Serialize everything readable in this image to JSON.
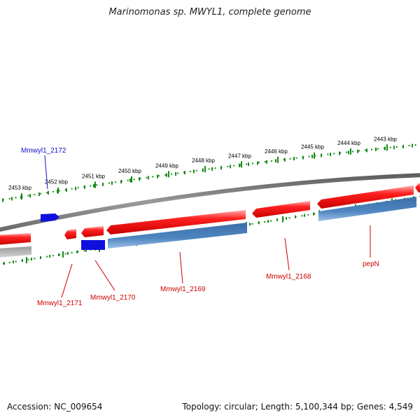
{
  "title": "Marinomonas sp. MWYL1, complete genome",
  "footer": {
    "accession_label": "Accession:",
    "accession": "NC_009654",
    "topology_label": "Topology:",
    "topology": "circular",
    "length_label": "Length:",
    "length": "5,100,344 bp",
    "genes_label": "Genes:",
    "genes": "4,549"
  },
  "colors": {
    "forward_gene": "#ee0000",
    "forward_orf": "#1010dd",
    "reverse_cds": "#4f86c0",
    "reverse_orf": "#1010dd",
    "ticks": "#1a8a1a",
    "backbone": "#808080",
    "forward_label": "#cc0000",
    "orf_label": "#1010cc"
  },
  "scale": {
    "unit": "kbp",
    "ticks": [
      "2453 kbp",
      "2452 kbp",
      "2451 kbp",
      "2450 kbp",
      "2449 kbp",
      "2448 kbp",
      "2447 kbp",
      "2446 kbp",
      "2445 kbp",
      "2444 kbp",
      "2443 kbp"
    ]
  },
  "gene_labels": [
    {
      "name": "Mmwyl1_2172",
      "color": "orf"
    },
    {
      "name": "Mmwyl1_2171",
      "color": "gene"
    },
    {
      "name": "Mmwyl1_2170",
      "color": "gene"
    },
    {
      "name": "Mmwyl1_2169",
      "color": "gene"
    },
    {
      "name": "Mmwyl1_2168",
      "color": "gene"
    },
    {
      "name": "pepN",
      "color": "gene"
    }
  ]
}
